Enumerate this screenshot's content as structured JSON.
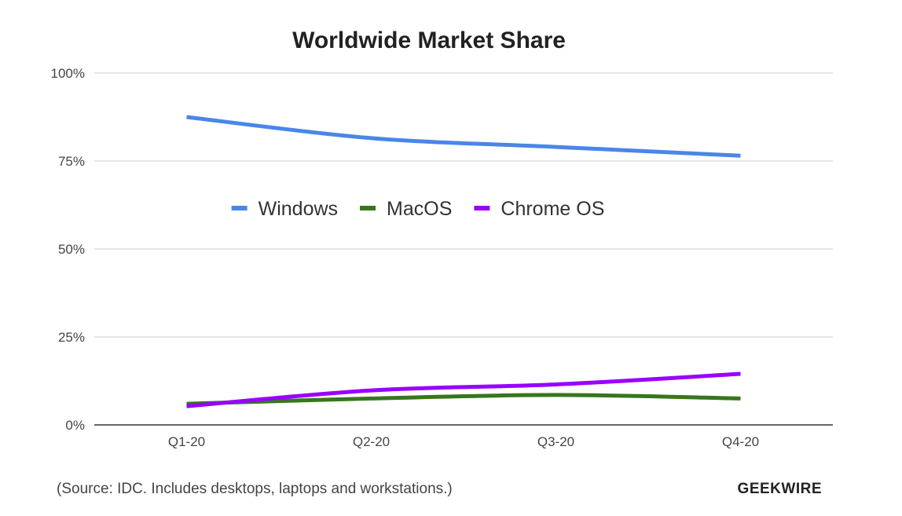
{
  "chart_data": {
    "type": "line",
    "title": "Worldwide Market Share",
    "categories": [
      "Q1-20",
      "Q2-20",
      "Q3-20",
      "Q4-20"
    ],
    "y_ticks": [
      "0%",
      "25%",
      "50%",
      "75%",
      "100%"
    ],
    "ylim": [
      0,
      100
    ],
    "grid": true,
    "legend_position": "center",
    "series": [
      {
        "name": "Windows",
        "color": "#4a86e8",
        "values": [
          87.5,
          81.5,
          79,
          76.5
        ]
      },
      {
        "name": "MacOS",
        "color": "#38761d",
        "values": [
          6,
          7.5,
          8.5,
          7.5
        ]
      },
      {
        "name": "Chrome OS",
        "color": "#9900ff",
        "values": [
          5.3,
          9.8,
          11.5,
          14.5
        ]
      }
    ]
  },
  "footer": {
    "source": "(Source: IDC. Includes desktops, laptops and workstations.)",
    "brand": "GEEKWIRE"
  }
}
